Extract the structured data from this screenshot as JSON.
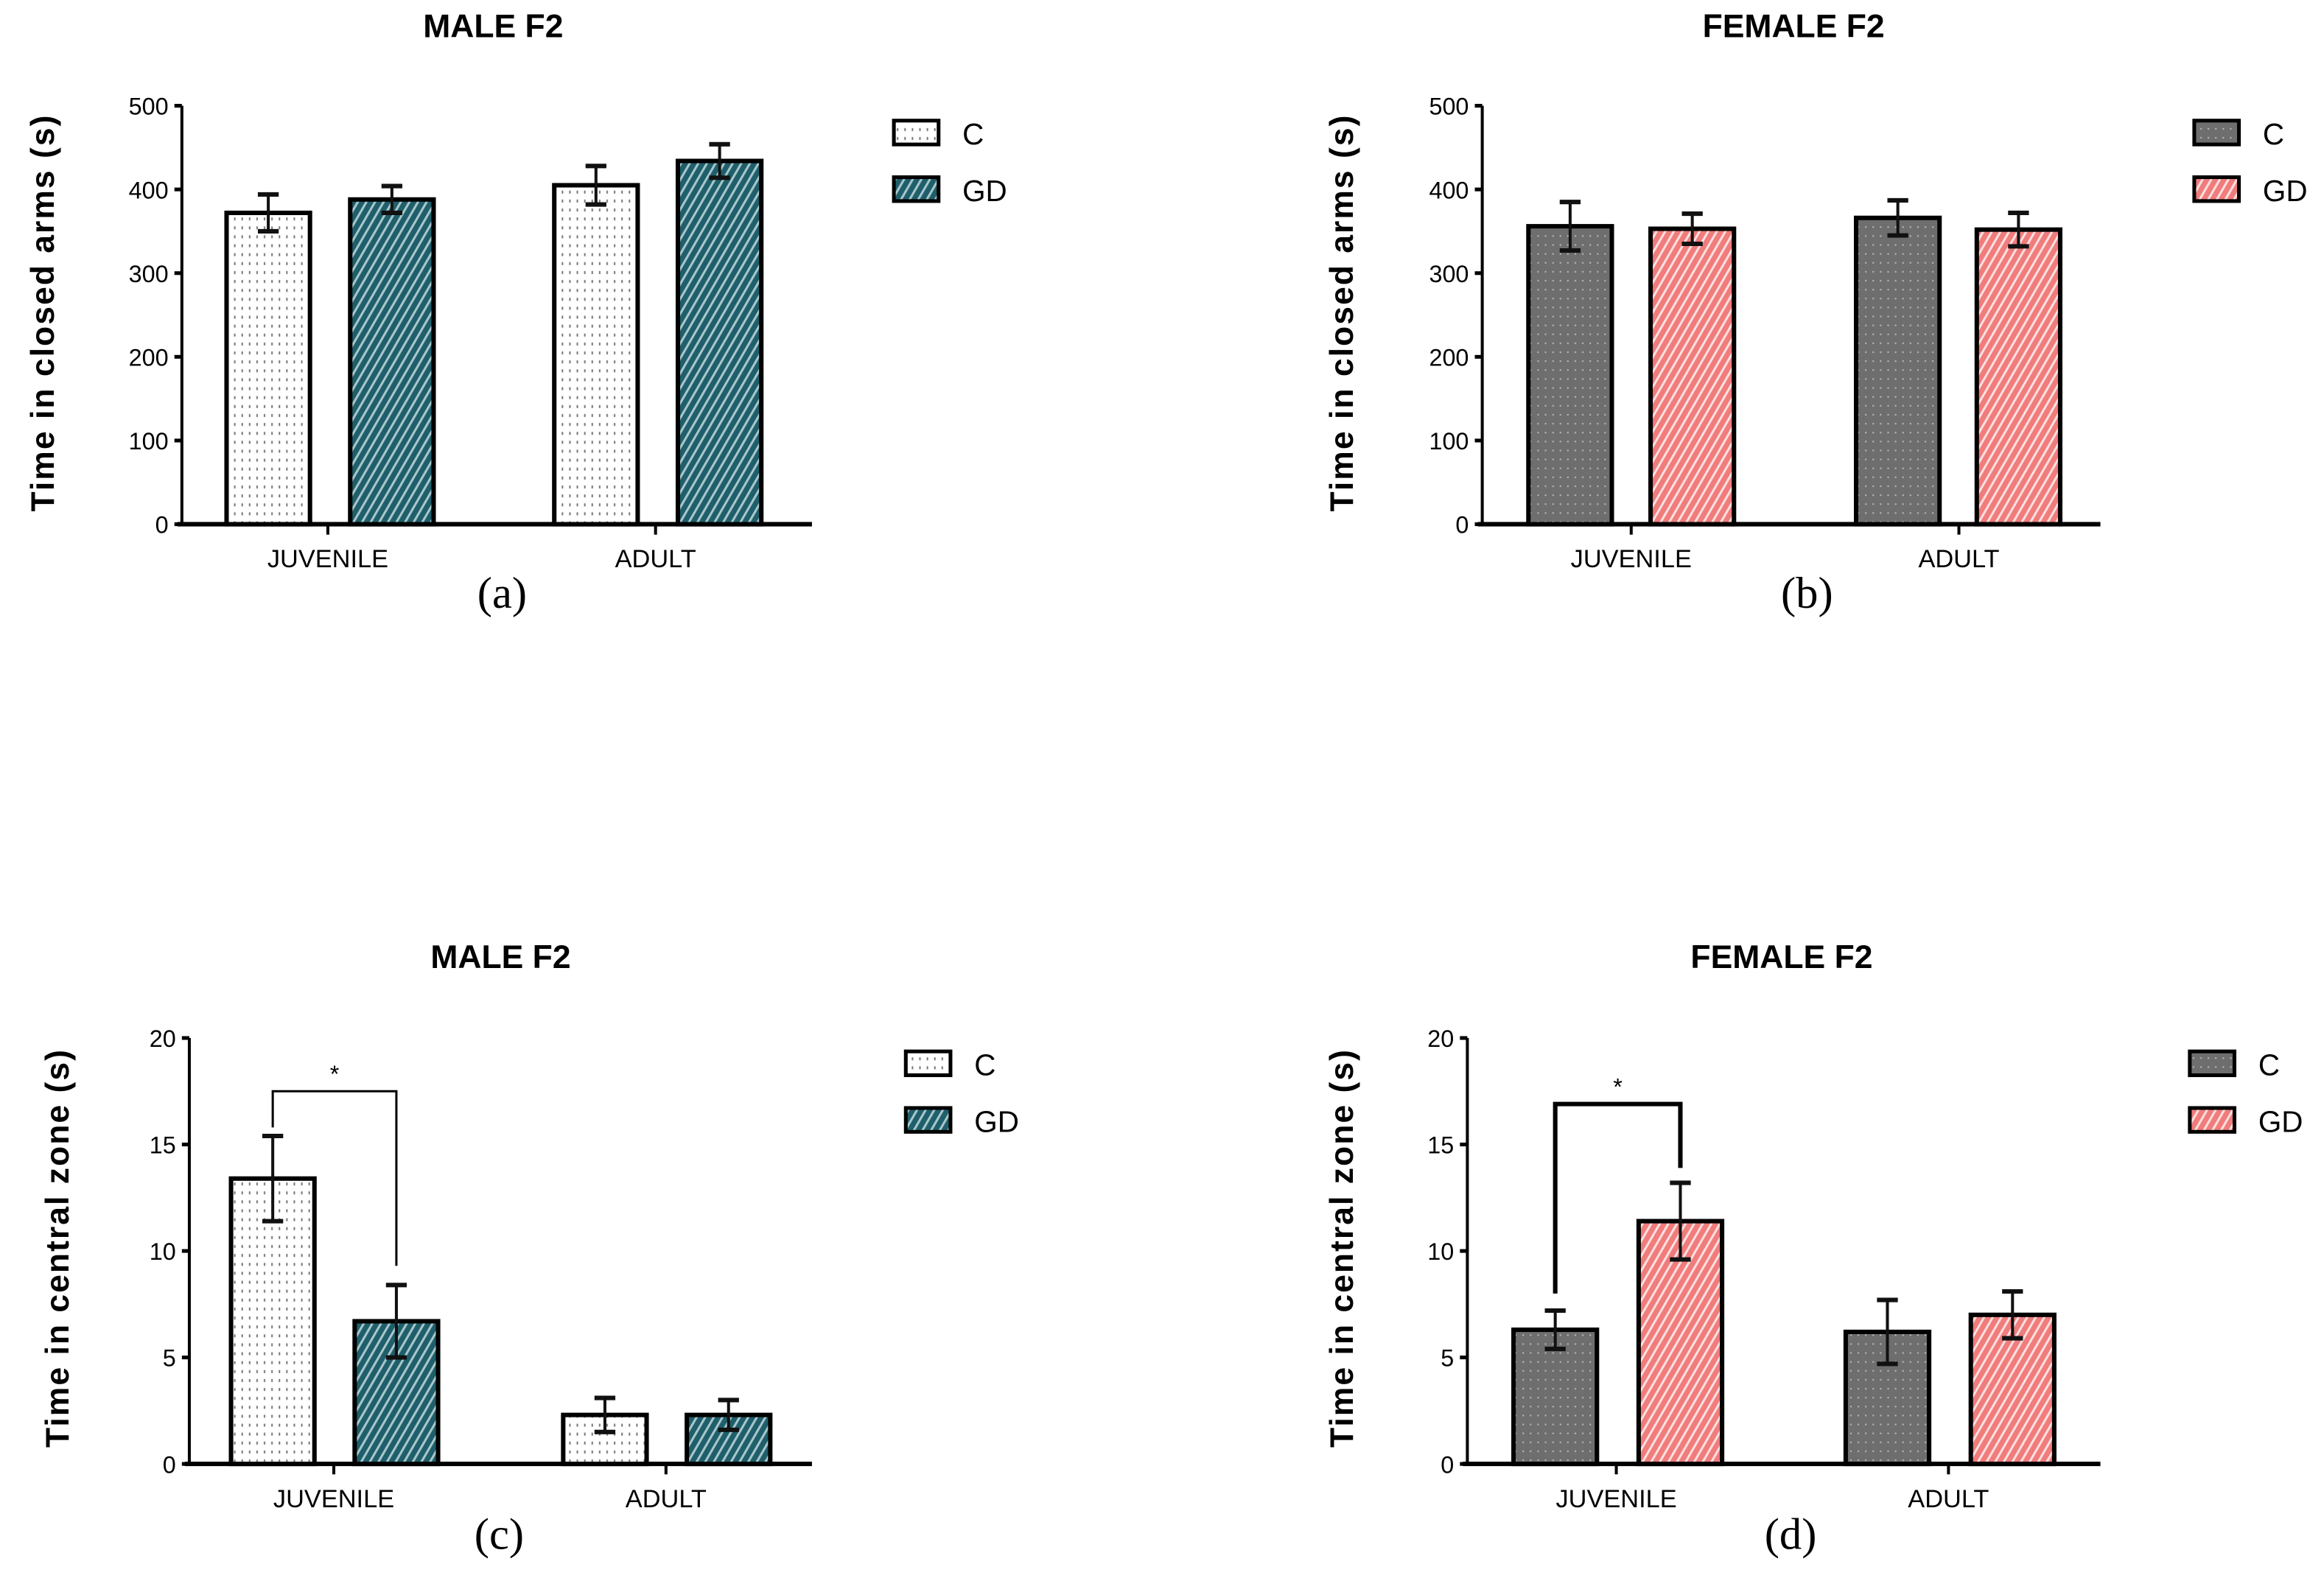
{
  "chart_data": [
    {
      "id": "a",
      "type": "bar",
      "title": "MALE F2",
      "panel_label": "(a)",
      "ylabel": "Time in closed arms (s)",
      "xlabel": "",
      "categories": [
        "JUVENILE",
        "ADULT"
      ],
      "ylim": [
        0,
        500
      ],
      "yticks": [
        0,
        100,
        200,
        300,
        400,
        500
      ],
      "series": [
        {
          "name": "C",
          "values": [
            372,
            405
          ],
          "errors": [
            22,
            23
          ],
          "fill": "#ffffff",
          "pattern": "dots-light"
        },
        {
          "name": "GD",
          "values": [
            388,
            434
          ],
          "errors": [
            16,
            20
          ],
          "fill": "#1f5f6b",
          "pattern": "hatch"
        }
      ],
      "significance": [],
      "legend": "top-right"
    },
    {
      "id": "b",
      "type": "bar",
      "title": "FEMALE F2",
      "panel_label": "(b)",
      "ylabel": "Time in closed arms (s)",
      "xlabel": "",
      "categories": [
        "JUVENILE",
        "ADULT"
      ],
      "ylim": [
        0,
        500
      ],
      "yticks": [
        0,
        100,
        200,
        300,
        400,
        500
      ],
      "series": [
        {
          "name": "C",
          "values": [
            356,
            366
          ],
          "errors": [
            29,
            21
          ],
          "fill": "#6e6e6e",
          "pattern": "dots-dark"
        },
        {
          "name": "GD",
          "values": [
            353,
            352
          ],
          "errors": [
            18,
            20
          ],
          "fill": "#f48484",
          "pattern": "hatch"
        }
      ],
      "significance": [],
      "legend": "top-right"
    },
    {
      "id": "c",
      "type": "bar",
      "title": "MALE F2",
      "panel_label": "(c)",
      "ylabel": "Time in central zone (s)",
      "xlabel": "",
      "categories": [
        "JUVENILE",
        "ADULT"
      ],
      "ylim": [
        0,
        20
      ],
      "yticks": [
        0,
        5,
        10,
        15,
        20
      ],
      "series": [
        {
          "name": "C",
          "values": [
            13.4,
            2.3
          ],
          "errors": [
            2.0,
            0.8
          ],
          "fill": "#ffffff",
          "pattern": "dots-light"
        },
        {
          "name": "GD",
          "values": [
            6.7,
            2.3
          ],
          "errors": [
            1.7,
            0.7
          ],
          "fill": "#1f5f6b",
          "pattern": "hatch"
        }
      ],
      "significance": [
        {
          "category": "JUVENILE",
          "label": "*",
          "level": 17.5,
          "left_end": 15.8,
          "right_end": 9.3
        }
      ],
      "legend": "top-right"
    },
    {
      "id": "d",
      "type": "bar",
      "title": "FEMALE F2",
      "panel_label": "(d)",
      "ylabel": "Time in central zone (s)",
      "xlabel": "",
      "categories": [
        "JUVENILE",
        "ADULT"
      ],
      "ylim": [
        0,
        20
      ],
      "yticks": [
        0,
        5,
        10,
        15,
        20
      ],
      "series": [
        {
          "name": "C",
          "values": [
            6.3,
            6.2
          ],
          "errors": [
            0.9,
            1.5
          ],
          "fill": "#6e6e6e",
          "pattern": "dots-dark"
        },
        {
          "name": "GD",
          "values": [
            11.4,
            7.0
          ],
          "errors": [
            1.8,
            1.1
          ],
          "fill": "#f48484",
          "pattern": "hatch"
        }
      ],
      "significance": [
        {
          "category": "JUVENILE",
          "label": "*",
          "level": 16.9,
          "left_end": 8.0,
          "right_end": 13.9
        }
      ],
      "legend": "top-right"
    }
  ]
}
